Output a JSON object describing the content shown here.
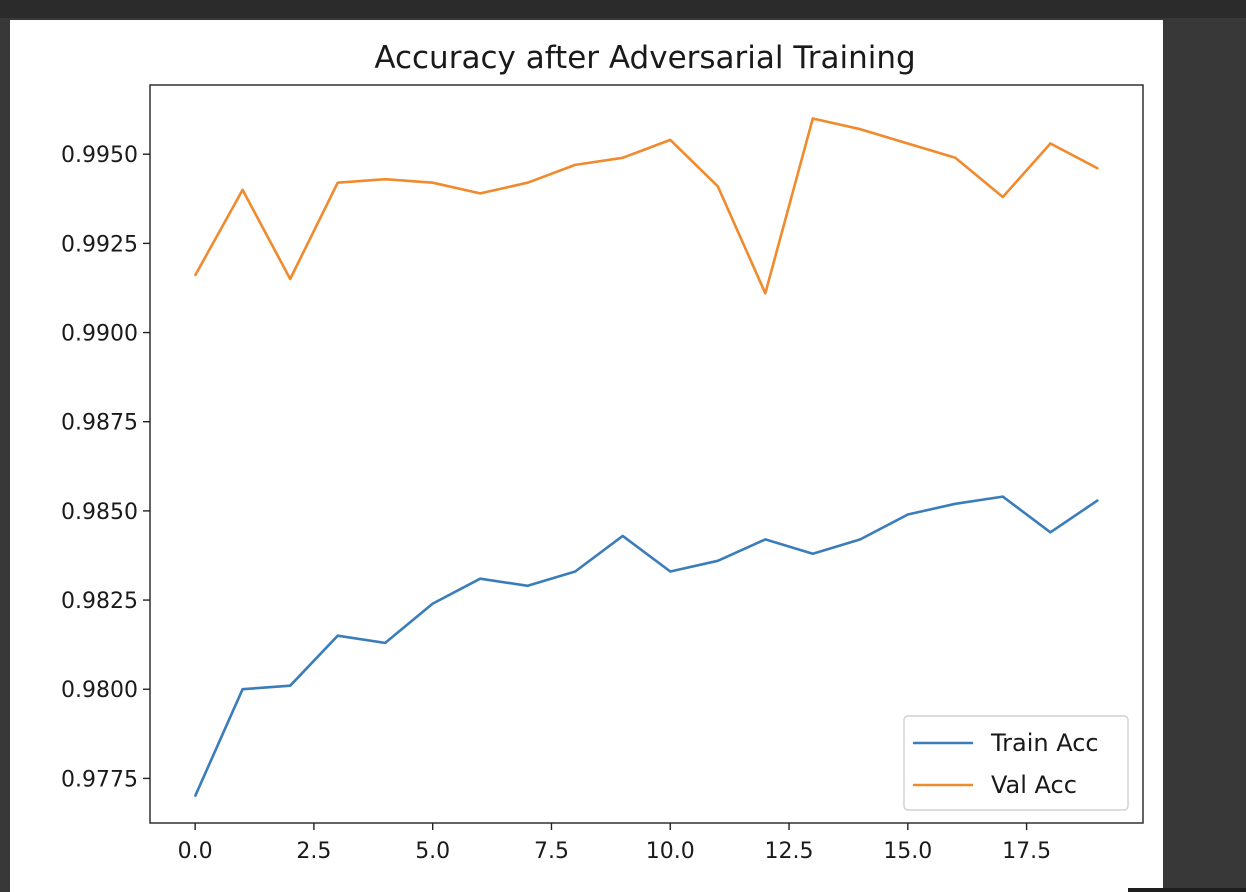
{
  "chart_data": {
    "type": "line",
    "title": "Accuracy after Adversarial Training",
    "xlabel": "",
    "ylabel": "",
    "xlim": [
      -0.95,
      19.95
    ],
    "ylim": [
      0.97625,
      0.99694
    ],
    "xticks": [
      0.0,
      2.5,
      5.0,
      7.5,
      10.0,
      12.5,
      15.0,
      17.5
    ],
    "xtick_labels": [
      "0.0",
      "2.5",
      "5.0",
      "7.5",
      "10.0",
      "12.5",
      "15.0",
      "17.5"
    ],
    "yticks": [
      0.9775,
      0.98,
      0.9825,
      0.985,
      0.9875,
      0.99,
      0.9925,
      0.995
    ],
    "ytick_labels": [
      "0.9775",
      "0.9800",
      "0.9825",
      "0.9850",
      "0.9875",
      "0.9900",
      "0.9925",
      "0.9950"
    ],
    "grid": false,
    "legend_position": "lower-right",
    "x": [
      0,
      1,
      2,
      3,
      4,
      5,
      6,
      7,
      8,
      9,
      10,
      11,
      12,
      13,
      14,
      15,
      16,
      17,
      18,
      19
    ],
    "series": [
      {
        "name": "Train Acc",
        "color": "#3a7dba",
        "values": [
          0.977,
          0.98,
          0.9801,
          0.9815,
          0.9813,
          0.9824,
          0.9831,
          0.9829,
          0.9833,
          0.9843,
          0.9833,
          0.9836,
          0.9842,
          0.9838,
          0.9842,
          0.9849,
          0.9852,
          0.9854,
          0.9844,
          0.9853
        ]
      },
      {
        "name": "Val Acc",
        "color": "#f08a2c",
        "values": [
          0.9916,
          0.994,
          0.9915,
          0.9942,
          0.9943,
          0.9942,
          0.9939,
          0.9942,
          0.9947,
          0.9949,
          0.9954,
          0.9941,
          0.9911,
          0.996,
          0.9957,
          0.9953,
          0.9949,
          0.9938,
          0.9953,
          0.9946
        ]
      }
    ]
  }
}
